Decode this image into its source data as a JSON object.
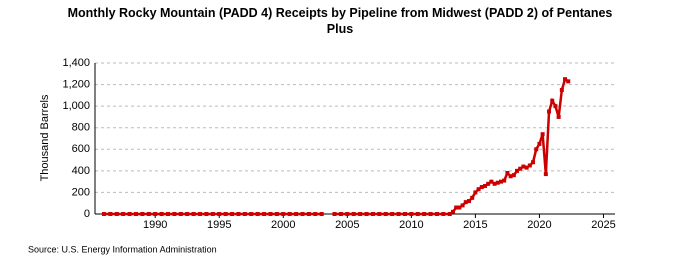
{
  "chart_data": {
    "type": "line",
    "title": "Monthly Rocky Mountain (PADD 4) Receipts by Pipeline from Midwest (PADD 2) of Pentanes Plus",
    "ylabel": "Thousand Barrels",
    "source": "Source: U.S. Energy Information Administration",
    "color": "#cc0000",
    "grid": true,
    "xlim": [
      1985.3,
      2025.9
    ],
    "xticks": [
      1990,
      1995,
      2000,
      2005,
      2010,
      2015,
      2020,
      2025
    ],
    "ylim": [
      0,
      1400
    ],
    "yticks": [
      0,
      200,
      400,
      600,
      800,
      {
        "value": 1000,
        "label": "1,000"
      },
      {
        "value": 1200,
        "label": "1,200"
      },
      {
        "value": 1400,
        "label": "1,400"
      }
    ],
    "x": [
      1986,
      1986.5,
      1987,
      1987.5,
      1988,
      1988.5,
      1989,
      1989.5,
      1990,
      1990.5,
      1991,
      1991.5,
      1992,
      1992.5,
      1993,
      1993.5,
      1994,
      1994.5,
      1995,
      1995.5,
      1996,
      1996.5,
      1997,
      1997.5,
      1998,
      1998.5,
      1999,
      1999.5,
      2000,
      2000.5,
      2001,
      2001.5,
      2002,
      2002.5,
      2003,
      2003.5,
      2004,
      2004.5,
      2005,
      2005.5,
      2006,
      2006.5,
      2007,
      2007.5,
      2008,
      2008.5,
      2009,
      2009.5,
      2010,
      2010.5,
      2011,
      2011.5,
      2012,
      2012.5,
      2013,
      2013.25,
      2013.5,
      2013.75,
      2014,
      2014.25,
      2014.5,
      2014.75,
      2015,
      2015.25,
      2015.5,
      2015.75,
      2016,
      2016.25,
      2016.5,
      2016.75,
      2017,
      2017.25,
      2017.5,
      2017.75,
      2018,
      2018.25,
      2018.5,
      2018.75,
      2019,
      2019.25,
      2019.5,
      2019.75,
      2020,
      2020.25,
      2020.5,
      2020.75,
      2021,
      2021.25,
      2021.5,
      2021.75,
      2022,
      2022.25
    ],
    "values": [
      0,
      0,
      0,
      0,
      0,
      0,
      0,
      0,
      0,
      0,
      0,
      0,
      0,
      0,
      0,
      0,
      0,
      0,
      0,
      0,
      0,
      0,
      0,
      0,
      0,
      0,
      0,
      0,
      0,
      0,
      0,
      0,
      0,
      0,
      0,
      null,
      0,
      0,
      0,
      0,
      0,
      0,
      0,
      0,
      0,
      0,
      0,
      0,
      0,
      0,
      0,
      0,
      0,
      0,
      0,
      20,
      60,
      60,
      80,
      110,
      120,
      150,
      200,
      230,
      250,
      260,
      280,
      300,
      280,
      290,
      300,
      310,
      380,
      350,
      360,
      400,
      420,
      440,
      430,
      450,
      480,
      600,
      650,
      740,
      370,
      950,
      1050,
      1000,
      900,
      1150,
      1250,
      1230
    ]
  }
}
